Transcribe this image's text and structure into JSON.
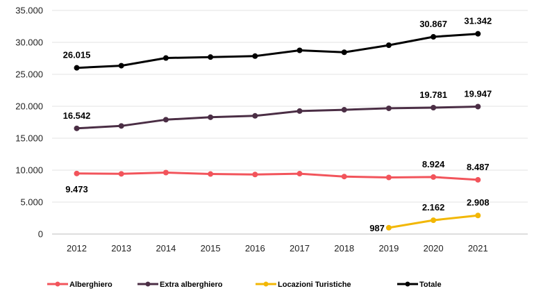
{
  "chart_data": {
    "type": "line",
    "x": [
      "2012",
      "2013",
      "2014",
      "2015",
      "2016",
      "2017",
      "2018",
      "2019",
      "2020",
      "2021"
    ],
    "ylim": [
      0,
      35000
    ],
    "yticks": [
      0,
      5000,
      10000,
      15000,
      20000,
      25000,
      30000,
      35000
    ],
    "ytick_labels": [
      "0",
      "5.000",
      "10.000",
      "15.000",
      "20.000",
      "25.000",
      "30.000",
      "35.000"
    ],
    "grid": "horizontal",
    "legend_position": "bottom",
    "series": [
      {
        "name": "Alberghiero",
        "color": "#f2545b",
        "values": [
          9473,
          9420,
          9620,
          9400,
          9320,
          9450,
          9000,
          8860,
          8924,
          8487
        ],
        "labels": [
          {
            "index": 0,
            "text": "9.473",
            "position": "below"
          },
          {
            "index": 8,
            "text": "8.924",
            "position": "above"
          },
          {
            "index": 9,
            "text": "8.487",
            "position": "above"
          }
        ]
      },
      {
        "name": "Extra alberghiero",
        "color": "#4b2e45",
        "values": [
          16542,
          16920,
          17900,
          18280,
          18500,
          19250,
          19450,
          19680,
          19781,
          19947
        ],
        "labels": [
          {
            "index": 0,
            "text": "16.542",
            "position": "above"
          },
          {
            "index": 8,
            "text": "19.781",
            "position": "above"
          },
          {
            "index": 9,
            "text": "19.947",
            "position": "above"
          }
        ]
      },
      {
        "name": "Locazioni Turistiche",
        "color": "#f2b705",
        "values": [
          null,
          null,
          null,
          null,
          null,
          null,
          null,
          987,
          2162,
          2908
        ],
        "labels": [
          {
            "index": 7,
            "text": "987",
            "position": "left"
          },
          {
            "index": 8,
            "text": "2.162",
            "position": "above"
          },
          {
            "index": 9,
            "text": "2.908",
            "position": "above"
          }
        ]
      },
      {
        "name": "Totale",
        "color": "#000000",
        "values": [
          26015,
          26350,
          27550,
          27700,
          27850,
          28750,
          28450,
          29550,
          30867,
          31342
        ],
        "labels": [
          {
            "index": 0,
            "text": "26.015",
            "position": "above"
          },
          {
            "index": 8,
            "text": "30.867",
            "position": "above"
          },
          {
            "index": 9,
            "text": "31.342",
            "position": "above"
          }
        ]
      }
    ]
  }
}
